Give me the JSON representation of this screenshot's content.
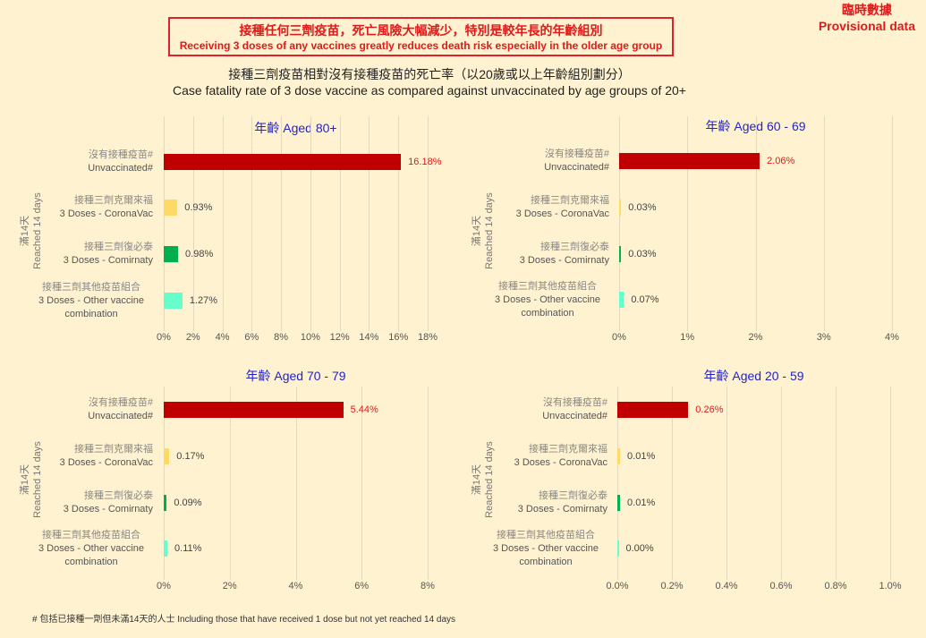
{
  "header": {
    "headline_zh": "接種任何三劑疫苗，死亡風險大幅減少，特別是較年長的年齡組別",
    "headline_en": "Receiving 3 doses of any vaccines greatly reduces death risk especially in the older age group",
    "provisional_zh": "臨時數據",
    "provisional_en": "Provisional data",
    "subtitle_zh": "接種三劑疫苗相對沒有接種疫苗的死亡率（以20歲或以上年齡組別劃分）",
    "subtitle_en": "Case fatality rate of 3 dose vaccine as compared against unvaccinated by age groups of 20+"
  },
  "shared": {
    "y_axis_zh": "滿14天",
    "y_axis_en": "Reached 14 days",
    "categories": [
      {
        "zh": "沒有接種疫苗#",
        "en": "Unvaccinated#",
        "en2": ""
      },
      {
        "zh": "接種三劑克爾來福",
        "en": "3 Doses - CoronaVac",
        "en2": ""
      },
      {
        "zh": "接種三劑復必泰",
        "en": "3 Doses - Comirnaty",
        "en2": ""
      },
      {
        "zh": "接種三劑其他疫苗組合",
        "en": "3 Doses - Other vaccine",
        "en2": "combination"
      }
    ],
    "colors": {
      "unvaccinated": "#c00000",
      "coronavac": "#ffd966",
      "comirnaty": "#00b050",
      "other": "#66ffcc"
    }
  },
  "footnote": "# 包括已接種一劑但未滿14天的人士 Including those that have received 1 dose but not yet reached 14 days",
  "chart_data": [
    {
      "type": "bar",
      "title": "年齡 Aged 80+",
      "categories": [
        "Unvaccinated#",
        "3 Doses - CoronaVac",
        "3 Doses - Comirnaty",
        "3 Doses - Other vaccine combination"
      ],
      "values": [
        16.18,
        0.93,
        0.98,
        1.27
      ],
      "labels": [
        "16.18%",
        "0.93%",
        "0.98%",
        "1.27%"
      ],
      "xticks": [
        "0%",
        "2%",
        "4%",
        "6%",
        "8%",
        "10%",
        "12%",
        "14%",
        "16%",
        "18%"
      ],
      "xlim": [
        0,
        18
      ],
      "xlabel": "",
      "ylabel": "滿14天 Reached 14 days"
    },
    {
      "type": "bar",
      "title": "年齡 Aged 60 - 69",
      "categories": [
        "Unvaccinated#",
        "3 Doses - CoronaVac",
        "3 Doses - Comirnaty",
        "3 Doses - Other vaccine combination"
      ],
      "values": [
        2.06,
        0.03,
        0.03,
        0.07
      ],
      "labels": [
        "2.06%",
        "0.03%",
        "0.03%",
        "0.07%"
      ],
      "xticks": [
        "0%",
        "1%",
        "2%",
        "3%",
        "4%"
      ],
      "xlim": [
        0,
        4
      ],
      "xlabel": "",
      "ylabel": "滿14天 Reached 14 days"
    },
    {
      "type": "bar",
      "title": "年齡 Aged 70 - 79",
      "categories": [
        "Unvaccinated#",
        "3 Doses - CoronaVac",
        "3 Doses - Comirnaty",
        "3 Doses - Other vaccine combination"
      ],
      "values": [
        5.44,
        0.17,
        0.09,
        0.11
      ],
      "labels": [
        "5.44%",
        "0.17%",
        "0.09%",
        "0.11%"
      ],
      "xticks": [
        "0%",
        "2%",
        "4%",
        "6%",
        "8%"
      ],
      "xlim": [
        0,
        8
      ],
      "xlabel": "",
      "ylabel": "滿14天 Reached 14 days"
    },
    {
      "type": "bar",
      "title": "年齡 Aged 20 - 59",
      "categories": [
        "Unvaccinated#",
        "3 Doses - CoronaVac",
        "3 Doses - Comirnaty",
        "3 Doses - Other vaccine combination"
      ],
      "values": [
        0.26,
        0.01,
        0.01,
        0.0
      ],
      "labels": [
        "0.26%",
        "0.01%",
        "0.01%",
        "0.00%"
      ],
      "xticks": [
        "0.0%",
        "0.2%",
        "0.4%",
        "0.6%",
        "0.8%",
        "1.0%"
      ],
      "xlim": [
        0,
        1.0
      ],
      "xlabel": "",
      "ylabel": "滿14天 Reached 14 days"
    }
  ]
}
